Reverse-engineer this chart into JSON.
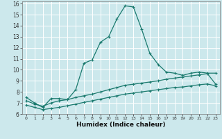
{
  "xlabel": "Humidex (Indice chaleur)",
  "background_color": "#cce8ec",
  "line_color": "#1a7a6e",
  "xlim": [
    -0.5,
    23.5
  ],
  "ylim": [
    6,
    16.2
  ],
  "xticks": [
    0,
    1,
    2,
    3,
    4,
    5,
    6,
    7,
    8,
    9,
    10,
    11,
    12,
    13,
    14,
    15,
    16,
    17,
    18,
    19,
    20,
    21,
    22,
    23
  ],
  "yticks": [
    6,
    7,
    8,
    9,
    10,
    11,
    12,
    13,
    14,
    15,
    16
  ],
  "curve1_x": [
    0,
    1,
    2,
    3,
    4,
    5,
    6,
    7,
    8,
    9,
    10,
    11,
    12,
    13,
    14,
    15,
    16,
    17,
    18,
    19,
    20,
    21,
    22,
    23
  ],
  "curve1_y": [
    7.5,
    7.0,
    6.6,
    7.4,
    7.4,
    7.3,
    8.2,
    10.6,
    10.9,
    12.5,
    13.0,
    14.6,
    15.8,
    15.7,
    13.7,
    11.5,
    10.5,
    9.8,
    9.7,
    9.5,
    9.7,
    9.8,
    9.7,
    9.7
  ],
  "curve2_x": [
    0,
    1,
    2,
    3,
    4,
    5,
    6,
    7,
    8,
    9,
    10,
    11,
    12,
    13,
    14,
    15,
    16,
    17,
    18,
    19,
    20,
    21,
    22,
    23
  ],
  "curve2_y": [
    7.2,
    6.9,
    6.7,
    7.0,
    7.2,
    7.3,
    7.5,
    7.65,
    7.8,
    8.0,
    8.2,
    8.4,
    8.6,
    8.7,
    8.8,
    8.9,
    9.0,
    9.15,
    9.25,
    9.35,
    9.45,
    9.55,
    9.65,
    8.7
  ],
  "curve3_x": [
    0,
    1,
    2,
    3,
    4,
    5,
    6,
    7,
    8,
    9,
    10,
    11,
    12,
    13,
    14,
    15,
    16,
    17,
    18,
    19,
    20,
    21,
    22,
    23
  ],
  "curve3_y": [
    6.8,
    6.6,
    6.4,
    6.5,
    6.6,
    6.75,
    6.9,
    7.05,
    7.2,
    7.35,
    7.5,
    7.65,
    7.8,
    7.9,
    8.0,
    8.1,
    8.2,
    8.3,
    8.4,
    8.45,
    8.55,
    8.65,
    8.72,
    8.55
  ]
}
